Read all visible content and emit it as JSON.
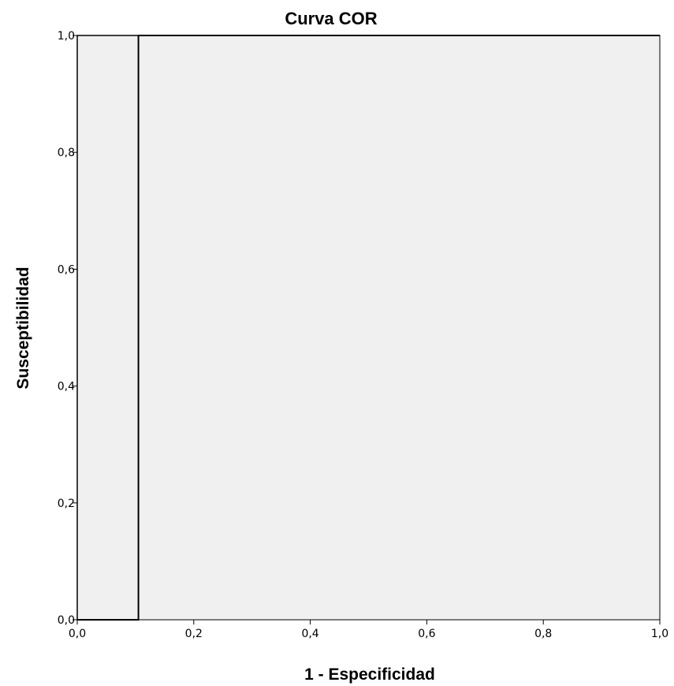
{
  "chart_data": {
    "type": "line",
    "title": "Curva COR",
    "xlabel": "1 - Especificidad",
    "ylabel": "Susceptibilidad",
    "xlim": [
      0,
      1
    ],
    "ylim": [
      0,
      1
    ],
    "x_ticks": [
      "0,0",
      "0,2",
      "0,4",
      "0,6",
      "0,8",
      "1,0"
    ],
    "y_ticks": [
      "0,0",
      "0,2",
      "0,4",
      "0,6",
      "0,8",
      "1,0"
    ],
    "grid": false,
    "legend": "none",
    "series": [
      {
        "points": [
          {
            "x": 0.0,
            "y": 0.0
          },
          {
            "x": 0.105,
            "y": 0.0
          },
          {
            "x": 0.105,
            "y": 1.0
          },
          {
            "x": 1.0,
            "y": 1.0
          }
        ]
      }
    ],
    "reference_line": [
      {
        "x": 0.0,
        "y": 0.0
      },
      {
        "x": 0.0,
        "y": 1.0
      },
      {
        "x": 1.0,
        "y": 1.0
      }
    ],
    "colors": {
      "plot_background": "#f0f0f0",
      "curve": "#000000",
      "reference": "#000000",
      "axis": "#000000"
    }
  }
}
